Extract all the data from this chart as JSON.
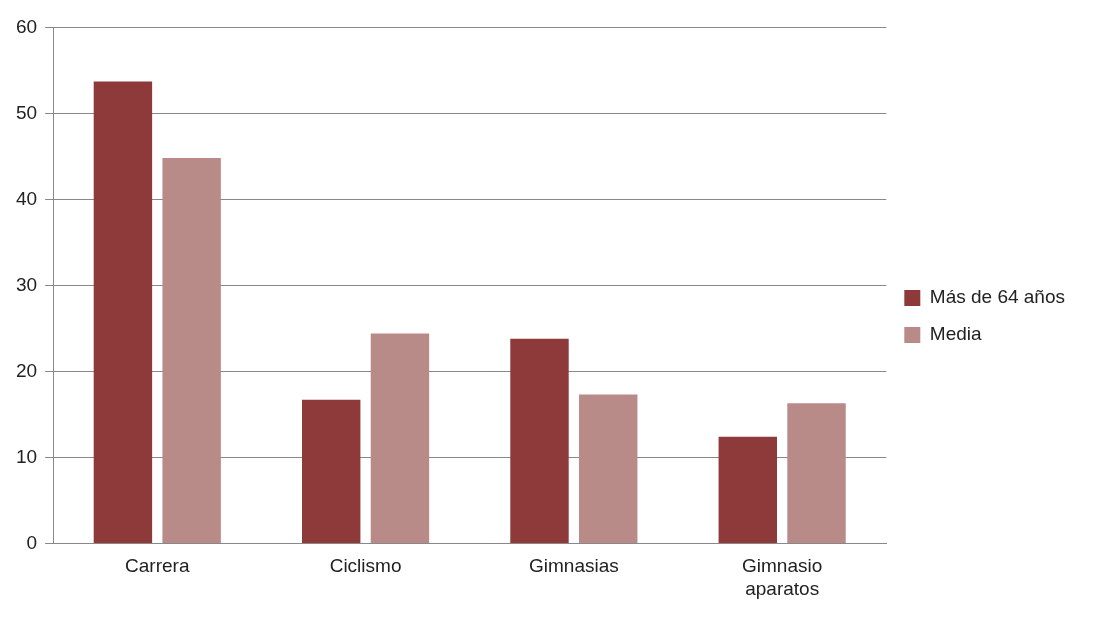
{
  "chart_data": {
    "type": "bar",
    "categories": [
      "Carrera",
      "Ciclismo",
      "Gimnasias",
      "Gimnasio aparatos"
    ],
    "series": [
      {
        "name": "Más de 64 años",
        "color": "#8e3a3a",
        "values": [
          53.7,
          16.7,
          23.8,
          12.4
        ]
      },
      {
        "name": "Media",
        "color": "#b88a88",
        "values": [
          44.8,
          24.4,
          17.3,
          16.3
        ]
      }
    ],
    "ylim": [
      0,
      60
    ],
    "yticks": [
      0,
      10,
      20,
      30,
      40,
      50,
      60
    ],
    "grid": "y",
    "legend": "right"
  }
}
